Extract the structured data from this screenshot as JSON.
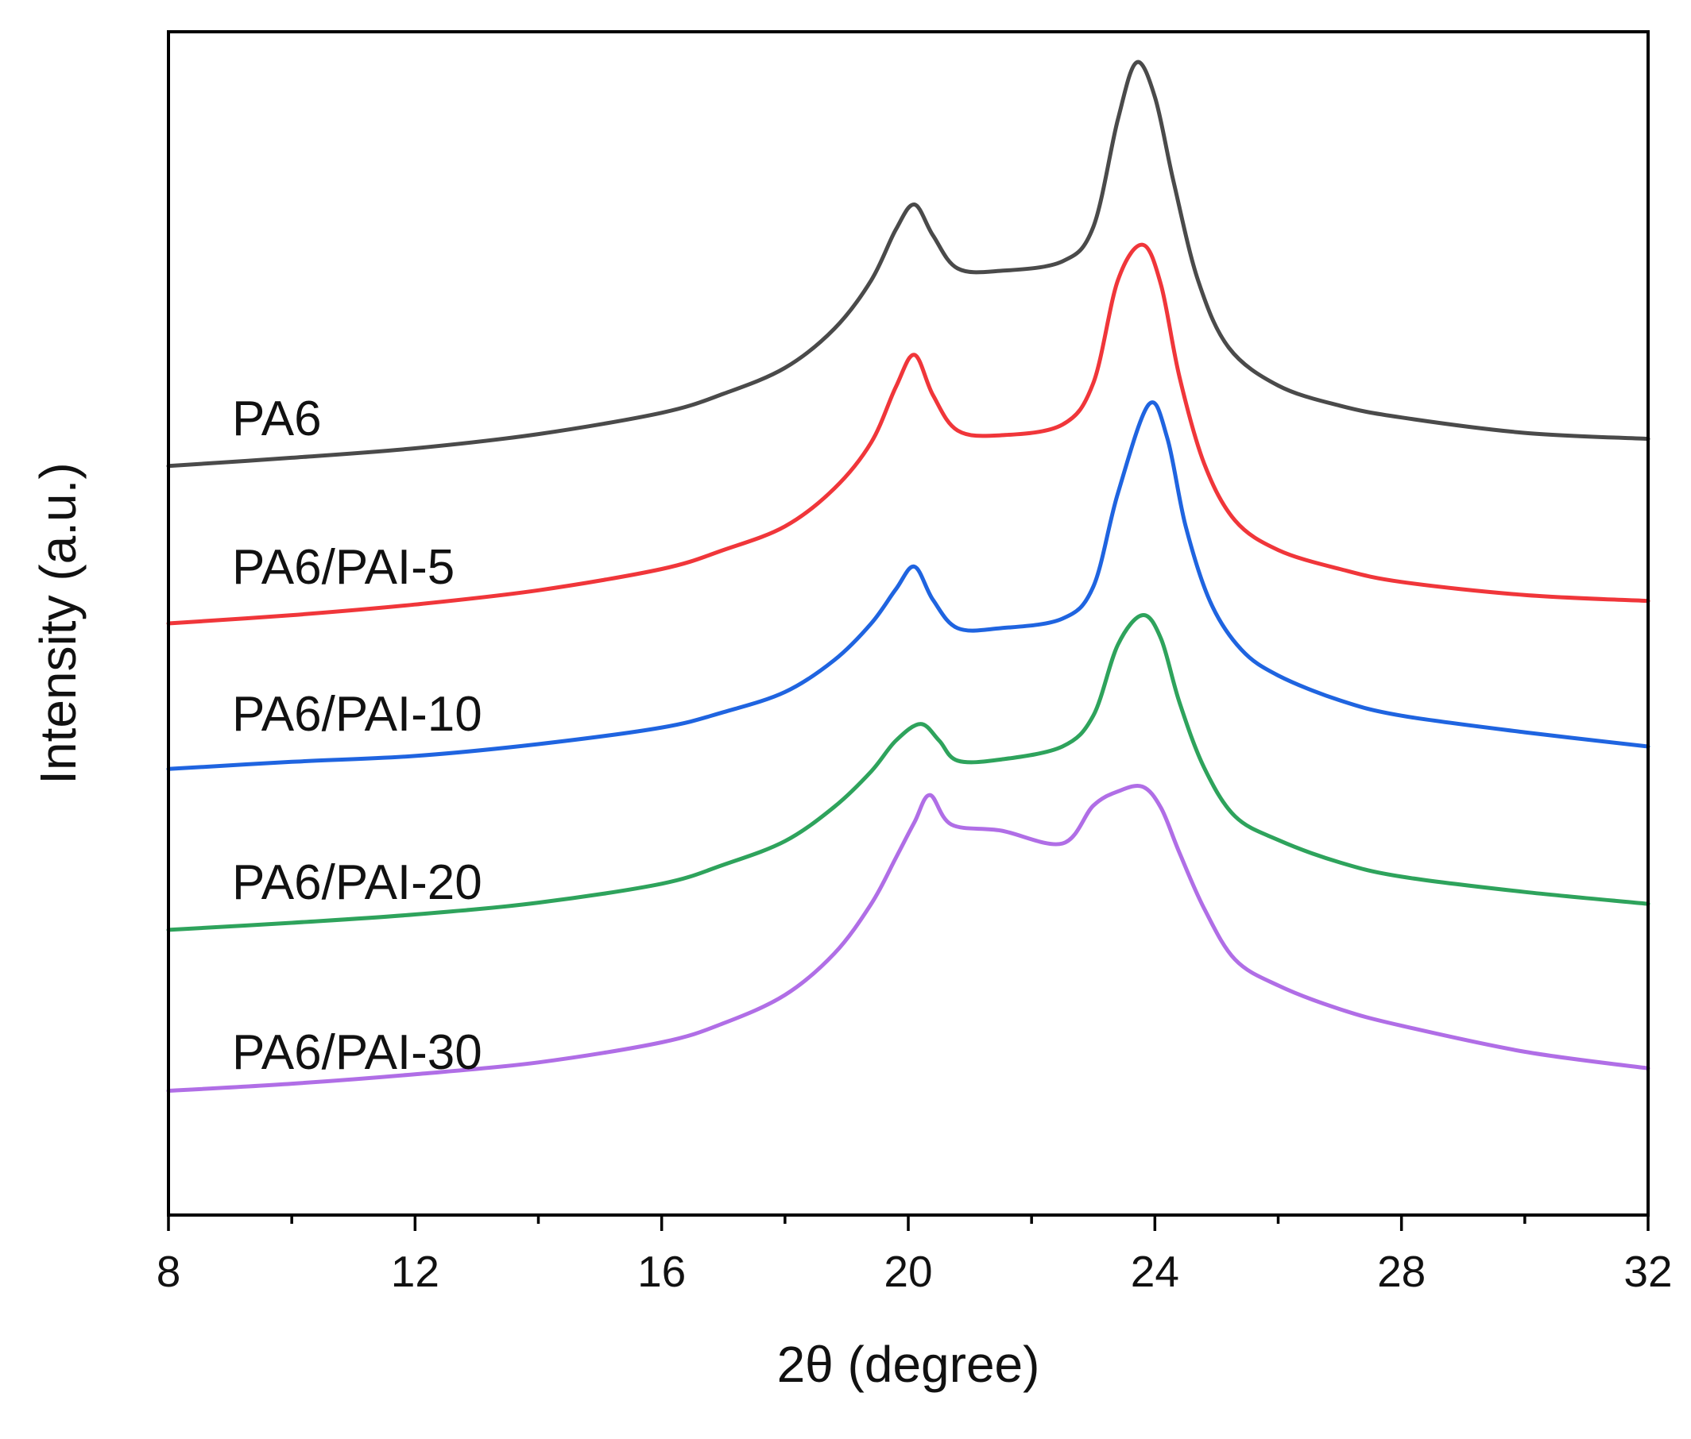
{
  "chart_data": {
    "type": "line",
    "title": "",
    "xlabel": "2θ (degree)",
    "ylabel": "Intensity (a.u.)",
    "xlim": [
      8,
      32
    ],
    "ylim": [
      0,
      100
    ],
    "xticks": [
      8,
      12,
      16,
      20,
      24,
      28,
      32
    ],
    "xticks_minor": [
      10,
      14,
      18,
      22,
      26,
      30
    ],
    "grid": false,
    "legend": "inline labels at left",
    "series": [
      {
        "name": "PA6",
        "color": "#4a4a4a",
        "x": [
          8,
          10,
          12,
          14,
          16,
          17,
          18,
          18.8,
          19.4,
          19.8,
          20.1,
          20.4,
          20.8,
          21.5,
          22.5,
          23.0,
          23.4,
          23.7,
          24.0,
          24.3,
          24.7,
          25.2,
          26,
          27,
          28,
          30,
          32
        ],
        "y": [
          63.3,
          64.0,
          64.8,
          66.0,
          67.8,
          69.4,
          71.6,
          74.9,
          79.0,
          83.3,
          85.4,
          82.8,
          80.0,
          79.8,
          80.6,
          83.5,
          92.6,
          97.4,
          94.5,
          87.4,
          79.0,
          73.3,
          70.1,
          68.4,
          67.4,
          66.1,
          65.6
        ]
      },
      {
        "name": "PA6/PAI-5",
        "color": "#f0363a",
        "x": [
          8,
          10,
          12,
          14,
          16,
          17,
          18,
          18.8,
          19.4,
          19.8,
          20.1,
          20.4,
          20.8,
          21.5,
          22.5,
          23.0,
          23.4,
          23.8,
          24.1,
          24.4,
          24.8,
          25.3,
          26,
          27,
          28,
          30,
          32
        ],
        "y": [
          50.0,
          50.7,
          51.6,
          52.8,
          54.6,
          56.2,
          58.2,
          61.4,
          65.3,
          70.0,
          72.7,
          69.3,
          66.3,
          65.9,
          66.8,
          70.3,
          79.0,
          82.0,
          78.6,
          70.8,
          63.5,
          58.7,
          56.2,
          54.6,
          53.5,
          52.4,
          51.9
        ]
      },
      {
        "name": "PA6/PAI-10",
        "color": "#1f64e0",
        "x": [
          8,
          10,
          12,
          14,
          16,
          17,
          18,
          18.8,
          19.4,
          19.8,
          20.1,
          20.4,
          20.8,
          21.5,
          22.5,
          23.0,
          23.4,
          23.9,
          24.2,
          24.5,
          24.9,
          25.4,
          26,
          27,
          28,
          30,
          32
        ],
        "y": [
          37.7,
          38.3,
          38.8,
          39.8,
          41.2,
          42.5,
          44.2,
          46.9,
          50.0,
          52.9,
          54.8,
          52.0,
          49.6,
          49.6,
          50.4,
          53.1,
          61.0,
          68.5,
          65.7,
          58.2,
          51.8,
          47.8,
          45.6,
          43.5,
          42.2,
          40.8,
          39.6
        ]
      },
      {
        "name": "PA6/PAI-20",
        "color": "#2ea35c",
        "x": [
          8,
          10,
          12,
          14,
          16,
          17,
          18,
          18.8,
          19.4,
          19.8,
          20.2,
          20.5,
          20.8,
          21.5,
          22.5,
          23.0,
          23.4,
          23.8,
          24.1,
          24.4,
          24.8,
          25.3,
          26,
          27,
          28,
          30,
          32
        ],
        "y": [
          24.1,
          24.7,
          25.4,
          26.4,
          28.0,
          29.6,
          31.6,
          34.5,
          37.5,
          40.1,
          41.5,
          40.1,
          38.4,
          38.5,
          39.6,
          42.2,
          48.2,
          50.7,
          48.7,
          43.3,
          37.8,
          33.7,
          31.7,
          29.8,
          28.6,
          27.3,
          26.3
        ]
      },
      {
        "name": "PA6/PAI-30",
        "color": "#b06ee6",
        "x": [
          8,
          10,
          12,
          14,
          16,
          17,
          18,
          18.8,
          19.4,
          19.8,
          20.1,
          20.35,
          20.7,
          21.5,
          22.5,
          23.0,
          23.4,
          23.8,
          24.1,
          24.4,
          24.8,
          25.3,
          26,
          27,
          28,
          30,
          32
        ],
        "y": [
          10.5,
          11.1,
          11.9,
          12.9,
          14.6,
          16.2,
          18.6,
          22.1,
          26.3,
          30.2,
          33.2,
          35.5,
          33.0,
          32.5,
          31.4,
          34.6,
          35.8,
          36.2,
          34.4,
          30.6,
          25.9,
          21.6,
          19.4,
          17.4,
          16.0,
          13.8,
          12.4
        ]
      }
    ]
  }
}
